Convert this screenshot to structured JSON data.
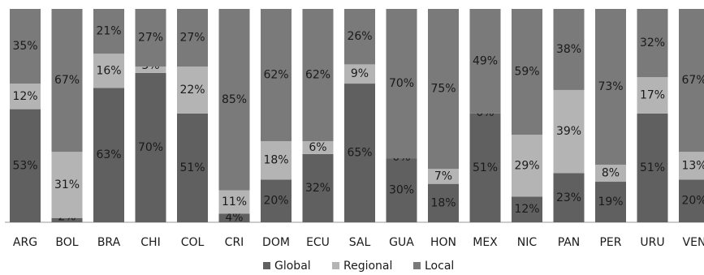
{
  "chart_data": {
    "type": "bar",
    "stacked": true,
    "percent": true,
    "categories": [
      "ARG",
      "BOL",
      "BRA",
      "CHI",
      "COL",
      "CRI",
      "DOM",
      "ECU",
      "SAL",
      "GUA",
      "HON",
      "MEX",
      "NIC",
      "PAN",
      "PER",
      "URU",
      "VEN"
    ],
    "series": [
      {
        "name": "Global",
        "color": "#606060",
        "values": [
          53,
          2,
          63,
          70,
          51,
          4,
          20,
          32,
          65,
          30,
          18,
          51,
          12,
          23,
          19,
          51,
          20
        ],
        "labels": [
          "53%",
          "2%",
          "63%",
          "70%",
          "51%",
          "4%",
          "20%",
          "32%",
          "65%",
          "30%",
          "18%",
          "51%",
          "12%",
          "23%",
          "19%",
          "51%",
          "20%"
        ]
      },
      {
        "name": "Regional",
        "color": "#b4b4b4",
        "values": [
          12,
          31,
          16,
          3,
          22,
          11,
          18,
          6,
          9,
          0,
          7,
          0,
          29,
          39,
          8,
          17,
          13
        ],
        "labels": [
          "12%",
          "31%",
          "16%",
          "3%",
          "22%",
          "11%",
          "18%",
          "6%",
          "9%",
          "0%",
          "7%",
          "0%",
          "29%",
          "39%",
          "8%",
          "17%",
          "13%"
        ]
      },
      {
        "name": "Local",
        "color": "#7a7a7a",
        "values": [
          35,
          67,
          21,
          27,
          27,
          85,
          62,
          62,
          26,
          70,
          75,
          49,
          59,
          38,
          73,
          32,
          67
        ],
        "labels": [
          "35%",
          "67%",
          "21%",
          "27%",
          "27%",
          "85%",
          "62%",
          "62%",
          "26%",
          "70%",
          "75%",
          "49%",
          "59%",
          "38%",
          "73%",
          "32%",
          "67%"
        ]
      }
    ],
    "ylim": [
      0,
      100
    ],
    "legend_position": "bottom",
    "grid": false
  }
}
